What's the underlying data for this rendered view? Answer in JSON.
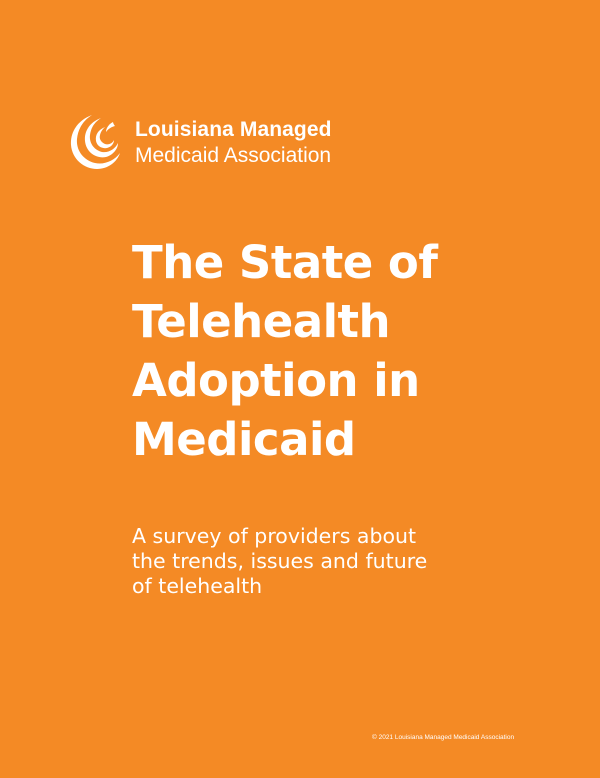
{
  "logo": {
    "icon": "swirl-logo-icon",
    "line1": "Louisiana Managed",
    "line2": "Medicaid Association"
  },
  "title": {
    "lines": [
      "The State of",
      "Telehealth",
      "Adoption in",
      "Medicaid"
    ]
  },
  "subtitle": {
    "lines": [
      "A survey of providers about",
      "the trends, issues and future",
      "of telehealth"
    ]
  },
  "footer": {
    "copyright": "© 2021 Louisiana Managed Medicaid Association"
  },
  "colors": {
    "background": "#f48a25",
    "text": "#ffffff"
  }
}
